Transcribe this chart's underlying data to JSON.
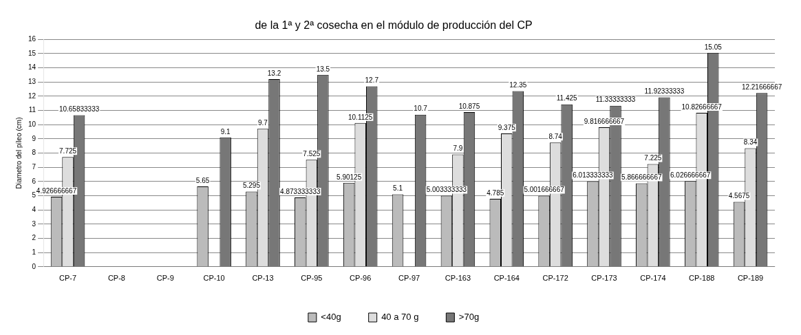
{
  "chart_data": {
    "type": "bar",
    "title": "de la 1ª y 2ª cosecha en el módulo de producción del CP",
    "ylabel": "Diametro del píleo (cm)",
    "categories": [
      "CP-7",
      "CP-8",
      "CP-9",
      "CP-10",
      "CP-13",
      "CP-95",
      "CP-96",
      "CP-97",
      "CP-163",
      "CP-164",
      "CP-172",
      "CP-173",
      "CP-174",
      "CP-188",
      "CP-189"
    ],
    "series": [
      {
        "name": "<40g",
        "color": "#bbbbbb",
        "values": [
          4.926666667,
          null,
          null,
          5.65,
          5.295,
          4.873333333,
          5.90125,
          5.1,
          5.003333333,
          4.785,
          5.001666667,
          6.013333333,
          5.866666667,
          6.026666667,
          4.5675
        ]
      },
      {
        "name": "40 a 70 g",
        "color": "#dddddd",
        "values": [
          7.725,
          null,
          null,
          null,
          9.7,
          7.525,
          10.1125,
          null,
          7.9,
          9.375,
          8.74,
          9.816666667,
          7.225,
          10.82666667,
          8.34
        ]
      },
      {
        "name": ">70g",
        "color": "#777777",
        "values": [
          10.65833333,
          null,
          null,
          9.1,
          13.2,
          13.5,
          12.7,
          10.7,
          10.875,
          12.35,
          11.425,
          11.33333333,
          11.92333333,
          15.05,
          12.21666667
        ]
      }
    ],
    "ylim": [
      0,
      16
    ],
    "yticks": [
      0,
      1,
      2,
      3,
      4,
      5,
      6,
      7,
      8,
      9,
      10,
      11,
      12,
      13,
      14,
      15,
      16
    ],
    "grid": "y",
    "legend": "bottom",
    "data_labels": true
  }
}
